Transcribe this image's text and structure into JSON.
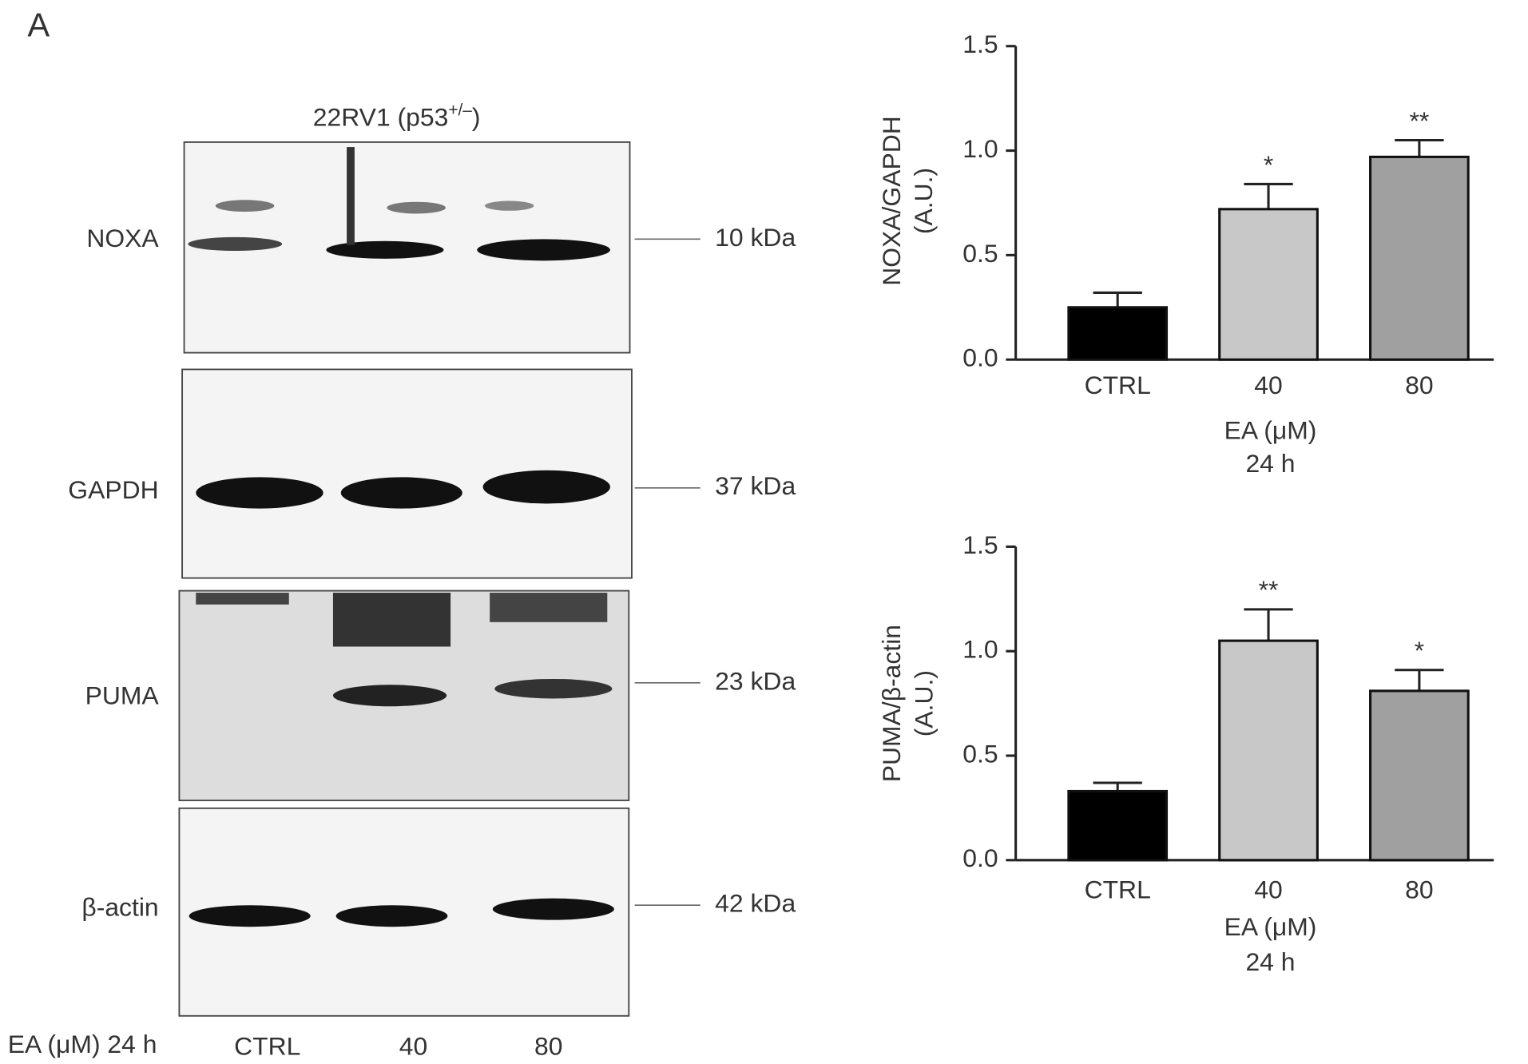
{
  "panel_label": "A",
  "blot": {
    "title": "22RV1 (p53",
    "title_sup": "+/–",
    "title_end": ")",
    "rows": [
      {
        "label": "NOXA",
        "size": "10 kDa"
      },
      {
        "label": "GAPDH",
        "size": "37 kDa"
      },
      {
        "label": "PUMA",
        "size": "23 kDa"
      },
      {
        "label": "β-actin",
        "size": "42 kDa"
      }
    ],
    "condition_label": "EA (μM) 24 h",
    "lanes": [
      "CTRL",
      "40",
      "80"
    ]
  },
  "chart_data": [
    {
      "type": "bar",
      "ylabel": [
        "NOXA/GAPDH",
        "(A.U.)"
      ],
      "xlabel": [
        "EA (μM)",
        "24 h"
      ],
      "categories": [
        "CTRL",
        "40",
        "80"
      ],
      "values": [
        0.25,
        0.72,
        0.97
      ],
      "errors": [
        0.07,
        0.12,
        0.08
      ],
      "annotations": [
        null,
        "*",
        "**"
      ],
      "colors": [
        "#000000",
        "#c8c8c8",
        "#a0a0a0"
      ],
      "ylim": [
        0,
        1.5
      ],
      "yticks": [
        {
          "value": 0,
          "label": "0.0"
        },
        0.5,
        {
          "value": 1,
          "label": "1.0"
        },
        1.5
      ]
    },
    {
      "type": "bar",
      "ylabel": [
        "PUMA/β-actin",
        "(A.U.)"
      ],
      "xlabel": [
        "EA (μM)",
        "24 h"
      ],
      "categories": [
        "CTRL",
        "40",
        "80"
      ],
      "values": [
        0.33,
        1.05,
        0.81
      ],
      "errors": [
        0.04,
        0.15,
        0.1
      ],
      "annotations": [
        null,
        "**",
        "*"
      ],
      "colors": [
        "#000000",
        "#c8c8c8",
        "#a0a0a0"
      ],
      "ylim": [
        0,
        1.5
      ],
      "yticks": [
        {
          "value": 0,
          "label": "0.0"
        },
        0.5,
        {
          "value": 1,
          "label": "1.0"
        },
        1.5
      ]
    }
  ]
}
